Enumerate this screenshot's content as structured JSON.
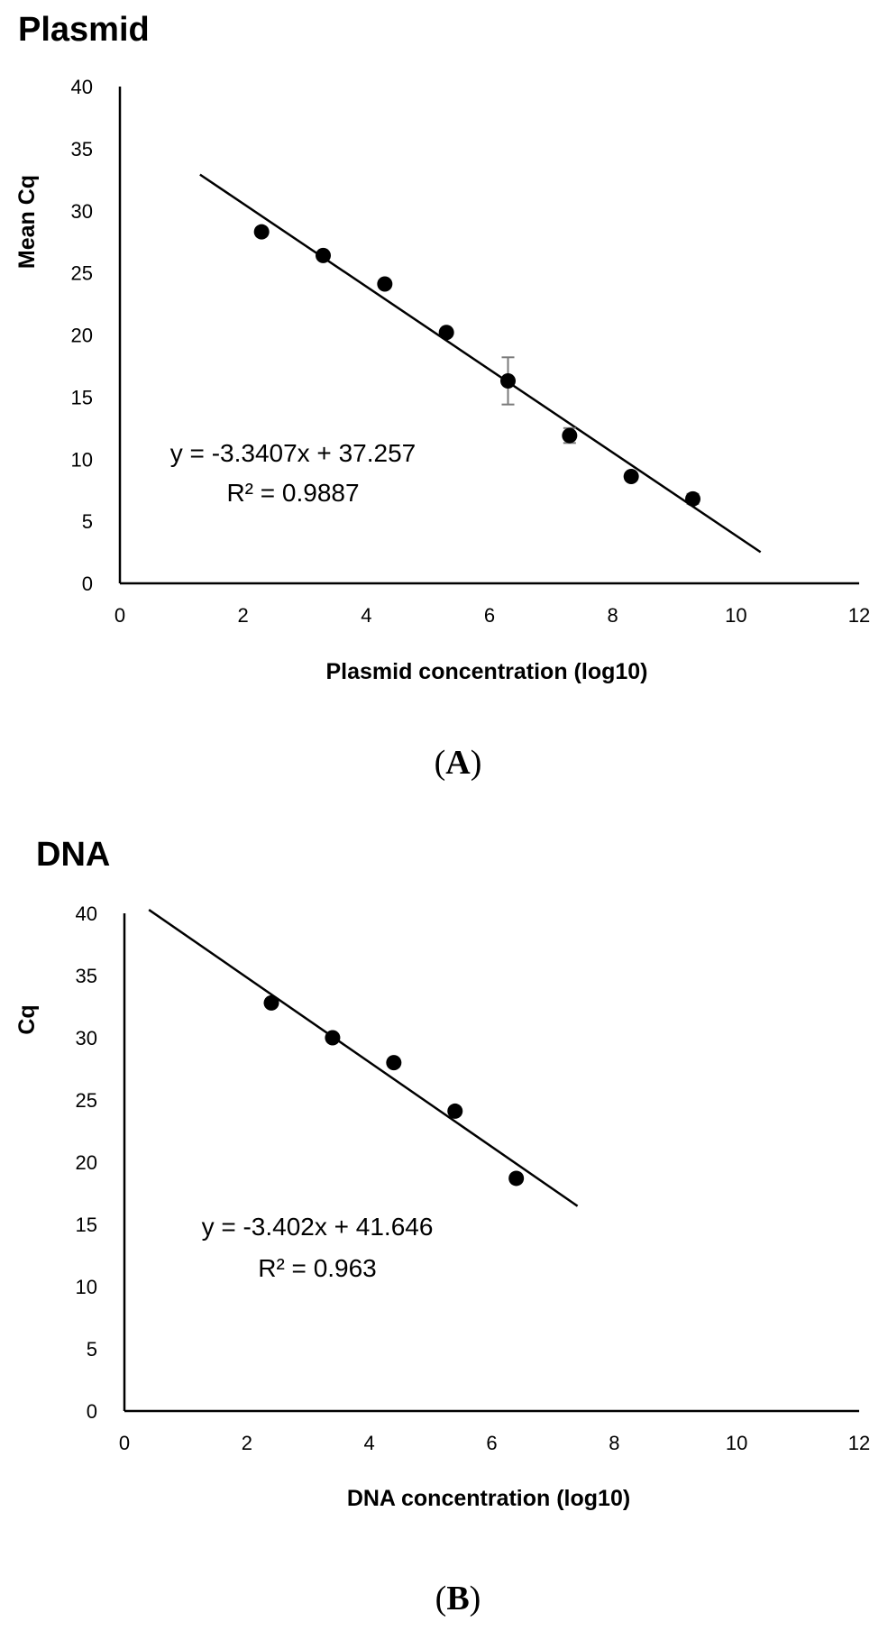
{
  "chart_data": [
    {
      "type": "scatter",
      "title": "Plasmid",
      "xlabel": "Plasmid concentration (log10)",
      "ylabel": "Mean Cq",
      "xlim": [
        0,
        12
      ],
      "ylim": [
        0,
        40
      ],
      "xticks": [
        0,
        2,
        4,
        6,
        8,
        10,
        12
      ],
      "yticks": [
        0,
        5,
        10,
        15,
        20,
        25,
        30,
        35,
        40
      ],
      "points": [
        {
          "x": 2.3,
          "y": 28.3,
          "err": 0.3
        },
        {
          "x": 3.3,
          "y": 26.4,
          "err": 0.3
        },
        {
          "x": 4.3,
          "y": 24.1,
          "err": 0.3
        },
        {
          "x": 5.3,
          "y": 20.2,
          "err": 0.3
        },
        {
          "x": 6.3,
          "y": 16.3,
          "err": 1.9
        },
        {
          "x": 7.3,
          "y": 11.9,
          "err": 0.6
        },
        {
          "x": 8.3,
          "y": 8.6,
          "err": 0.3
        },
        {
          "x": 9.3,
          "y": 6.8,
          "err": 0.4
        }
      ],
      "trendline": {
        "slope": -3.3407,
        "intercept": 37.257,
        "x_start": 1.3,
        "x_end": 10.4
      },
      "equation": "y = -3.3407x + 37.257",
      "r_squared_label": "R² = 0.9887",
      "panel_letter": "A"
    },
    {
      "type": "scatter",
      "title": "DNA",
      "xlabel": "DNA concentration  (log10)",
      "ylabel": "Cq",
      "xlim": [
        0,
        12
      ],
      "ylim": [
        0,
        40
      ],
      "xticks": [
        0,
        2,
        4,
        6,
        8,
        10,
        12
      ],
      "yticks": [
        0,
        5,
        10,
        15,
        20,
        25,
        30,
        35,
        40
      ],
      "points": [
        {
          "x": 2.4,
          "y": 32.8,
          "err": 0.3
        },
        {
          "x": 3.4,
          "y": 30.0,
          "err": 0.3
        },
        {
          "x": 4.4,
          "y": 28.0,
          "err": 0.3
        },
        {
          "x": 5.4,
          "y": 24.1,
          "err": 0.3
        },
        {
          "x": 6.4,
          "y": 18.7,
          "err": 0.3
        }
      ],
      "trendline": {
        "slope": -3.402,
        "intercept": 41.646,
        "x_start": 0.4,
        "x_end": 7.4
      },
      "equation": "y = -3.402x + 41.646",
      "r_squared_label": "R² = 0.963",
      "panel_letter": "B"
    }
  ]
}
